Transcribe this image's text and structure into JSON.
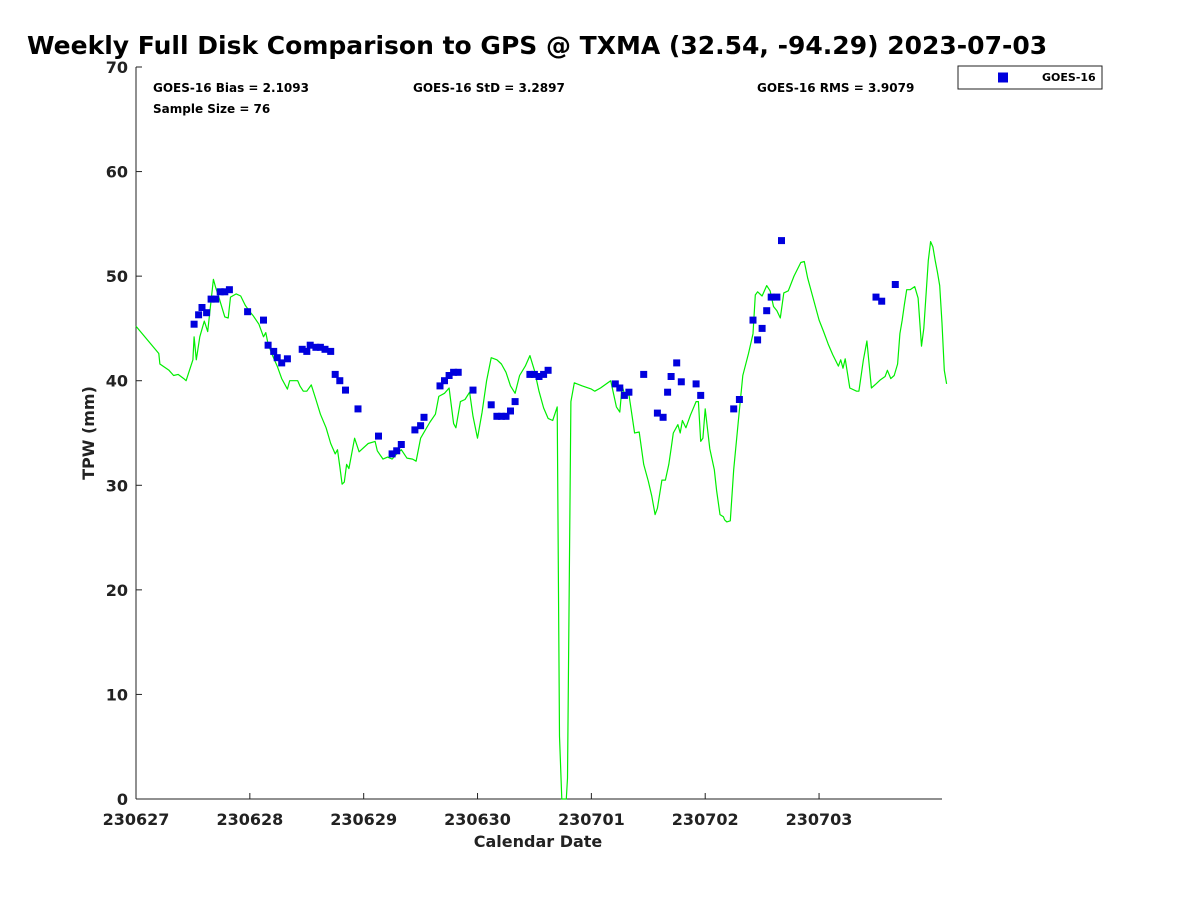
{
  "chart_data": {
    "type": "scatter",
    "title": "Weekly Full Disk Comparison to GPS @ TXMA (32.54, -94.29) 2023-07-03",
    "xlabel": "Calendar Date",
    "ylabel": "TPW (mm)",
    "xlim": [
      230627,
      230703.92
    ],
    "ylim": [
      0,
      70
    ],
    "x_ticks": [
      {
        "value": 0,
        "label": "230627"
      },
      {
        "value": 1,
        "label": "230628"
      },
      {
        "value": 2,
        "label": "230629"
      },
      {
        "value": 3,
        "label": "230630"
      },
      {
        "value": 4,
        "label": "230701"
      },
      {
        "value": 5,
        "label": "230702"
      },
      {
        "value": 6,
        "label": "230703"
      }
    ],
    "y_ticks": [
      0,
      10,
      20,
      30,
      40,
      50,
      60,
      70
    ],
    "grid": false,
    "legend_position": "top-right",
    "stats": {
      "bias": "GOES-16 Bias = 2.1093",
      "std": "GOES-16 StD = 3.2897",
      "rms": "GOES-16 RMS = 3.9079",
      "sample_size": "Sample Size = 76"
    },
    "series": [
      {
        "name": "GOES-16",
        "kind": "markers",
        "color": "#0000dd",
        "points": [
          [
            0.51,
            45.4
          ],
          [
            0.55,
            46.3
          ],
          [
            0.58,
            47.0
          ],
          [
            0.62,
            46.5
          ],
          [
            0.66,
            47.8
          ],
          [
            0.7,
            47.8
          ],
          [
            0.74,
            48.5
          ],
          [
            0.78,
            48.5
          ],
          [
            0.82,
            48.7
          ],
          [
            0.98,
            46.6
          ],
          [
            1.12,
            45.8
          ],
          [
            1.16,
            43.4
          ],
          [
            1.21,
            42.8
          ],
          [
            1.24,
            42.2
          ],
          [
            1.28,
            41.7
          ],
          [
            1.33,
            42.1
          ],
          [
            1.46,
            43.0
          ],
          [
            1.5,
            42.8
          ],
          [
            1.53,
            43.4
          ],
          [
            1.58,
            43.2
          ],
          [
            1.62,
            43.2
          ],
          [
            1.66,
            43.0
          ],
          [
            1.71,
            42.8
          ],
          [
            1.75,
            40.6
          ],
          [
            1.79,
            40.0
          ],
          [
            1.84,
            39.1
          ],
          [
            1.95,
            37.3
          ],
          [
            2.13,
            34.7
          ],
          [
            2.25,
            33.0
          ],
          [
            2.29,
            33.3
          ],
          [
            2.33,
            33.9
          ],
          [
            2.45,
            35.3
          ],
          [
            2.5,
            35.7
          ],
          [
            2.53,
            36.5
          ],
          [
            2.67,
            39.5
          ],
          [
            2.71,
            40.0
          ],
          [
            2.75,
            40.5
          ],
          [
            2.79,
            40.8
          ],
          [
            2.83,
            40.8
          ],
          [
            2.96,
            39.1
          ],
          [
            3.12,
            37.7
          ],
          [
            3.17,
            36.6
          ],
          [
            3.21,
            36.6
          ],
          [
            3.25,
            36.6
          ],
          [
            3.29,
            37.1
          ],
          [
            3.33,
            38.0
          ],
          [
            3.46,
            40.6
          ],
          [
            3.5,
            40.6
          ],
          [
            3.54,
            40.4
          ],
          [
            3.58,
            40.6
          ],
          [
            3.62,
            41.0
          ],
          [
            4.21,
            39.7
          ],
          [
            4.25,
            39.3
          ],
          [
            4.29,
            38.6
          ],
          [
            4.33,
            38.9
          ],
          [
            4.46,
            40.6
          ],
          [
            4.58,
            36.9
          ],
          [
            4.63,
            36.5
          ],
          [
            4.67,
            38.9
          ],
          [
            4.7,
            40.4
          ],
          [
            4.75,
            41.7
          ],
          [
            4.79,
            39.9
          ],
          [
            4.92,
            39.7
          ],
          [
            4.96,
            38.6
          ],
          [
            5.25,
            37.3
          ],
          [
            5.3,
            38.2
          ],
          [
            5.42,
            45.8
          ],
          [
            5.46,
            43.9
          ],
          [
            5.5,
            45.0
          ],
          [
            5.54,
            46.7
          ],
          [
            5.58,
            48.0
          ],
          [
            5.63,
            48.0
          ],
          [
            5.67,
            53.4
          ],
          [
            6.5,
            48.0
          ],
          [
            6.55,
            47.6
          ],
          [
            6.67,
            49.2
          ]
        ]
      },
      {
        "name": "GPS",
        "kind": "line",
        "color": "#00ee00",
        "points": [
          [
            0.0,
            45.2
          ],
          [
            0.2,
            42.6
          ],
          [
            0.21,
            41.6
          ],
          [
            0.29,
            41.0
          ],
          [
            0.33,
            40.5
          ],
          [
            0.37,
            40.6
          ],
          [
            0.42,
            40.2
          ],
          [
            0.44,
            40.0
          ],
          [
            0.5,
            42.0
          ],
          [
            0.51,
            44.2
          ],
          [
            0.53,
            42.0
          ],
          [
            0.56,
            44.2
          ],
          [
            0.6,
            45.7
          ],
          [
            0.63,
            44.7
          ],
          [
            0.68,
            49.7
          ],
          [
            0.7,
            48.9
          ],
          [
            0.73,
            47.9
          ],
          [
            0.78,
            46.1
          ],
          [
            0.81,
            46.0
          ],
          [
            0.83,
            48.0
          ],
          [
            0.88,
            48.3
          ],
          [
            0.92,
            48.1
          ],
          [
            0.96,
            47.2
          ],
          [
            1.0,
            46.6
          ],
          [
            1.03,
            46.2
          ],
          [
            1.08,
            45.4
          ],
          [
            1.12,
            44.2
          ],
          [
            1.14,
            44.6
          ],
          [
            1.16,
            43.5
          ],
          [
            1.2,
            42.4
          ],
          [
            1.24,
            41.4
          ],
          [
            1.28,
            40.2
          ],
          [
            1.33,
            39.2
          ],
          [
            1.35,
            40.0
          ],
          [
            1.42,
            40.0
          ],
          [
            1.44,
            39.5
          ],
          [
            1.47,
            39.0
          ],
          [
            1.5,
            39.0
          ],
          [
            1.54,
            39.6
          ],
          [
            1.58,
            38.2
          ],
          [
            1.62,
            36.8
          ],
          [
            1.67,
            35.5
          ],
          [
            1.71,
            34.0
          ],
          [
            1.75,
            33.0
          ],
          [
            1.77,
            33.4
          ],
          [
            1.79,
            31.8
          ],
          [
            1.81,
            30.1
          ],
          [
            1.83,
            30.3
          ],
          [
            1.85,
            32.0
          ],
          [
            1.87,
            31.6
          ],
          [
            1.92,
            34.5
          ],
          [
            1.96,
            33.2
          ],
          [
            2.04,
            34.0
          ],
          [
            2.1,
            34.2
          ],
          [
            2.12,
            33.3
          ],
          [
            2.17,
            32.5
          ],
          [
            2.21,
            32.7
          ],
          [
            2.25,
            32.5
          ],
          [
            2.29,
            33.0
          ],
          [
            2.33,
            33.4
          ],
          [
            2.38,
            32.6
          ],
          [
            2.43,
            32.5
          ],
          [
            2.46,
            32.3
          ],
          [
            2.5,
            34.5
          ],
          [
            2.58,
            36.0
          ],
          [
            2.63,
            36.8
          ],
          [
            2.66,
            38.5
          ],
          [
            2.71,
            38.8
          ],
          [
            2.75,
            39.3
          ],
          [
            2.79,
            35.9
          ],
          [
            2.81,
            35.5
          ],
          [
            2.85,
            38.0
          ],
          [
            2.89,
            38.2
          ],
          [
            2.93,
            38.9
          ],
          [
            2.96,
            36.6
          ],
          [
            3.0,
            34.5
          ],
          [
            3.04,
            37.0
          ],
          [
            3.08,
            40.0
          ],
          [
            3.12,
            42.2
          ],
          [
            3.17,
            42.0
          ],
          [
            3.21,
            41.6
          ],
          [
            3.25,
            40.8
          ],
          [
            3.29,
            39.5
          ],
          [
            3.33,
            38.8
          ],
          [
            3.37,
            40.5
          ],
          [
            3.42,
            41.4
          ],
          [
            3.46,
            42.4
          ],
          [
            3.5,
            41.0
          ],
          [
            3.54,
            39.0
          ],
          [
            3.58,
            37.4
          ],
          [
            3.62,
            36.4
          ],
          [
            3.66,
            36.2
          ],
          [
            3.7,
            37.5
          ],
          [
            3.72,
            6.0
          ],
          [
            3.74,
            0.0
          ],
          [
            3.78,
            0.0
          ],
          [
            3.79,
            2.0
          ],
          [
            3.82,
            38.0
          ],
          [
            3.85,
            39.8
          ],
          [
            3.92,
            39.5
          ],
          [
            4.0,
            39.2
          ],
          [
            4.03,
            39.0
          ],
          [
            4.08,
            39.3
          ],
          [
            4.17,
            40.0
          ],
          [
            4.22,
            37.5
          ],
          [
            4.25,
            37.0
          ],
          [
            4.27,
            39.5
          ],
          [
            4.29,
            38.8
          ],
          [
            4.33,
            38.7
          ],
          [
            4.38,
            35.0
          ],
          [
            4.42,
            35.1
          ],
          [
            4.46,
            32.0
          ],
          [
            4.5,
            30.4
          ],
          [
            4.53,
            29.0
          ],
          [
            4.56,
            27.2
          ],
          [
            4.58,
            27.8
          ],
          [
            4.62,
            30.5
          ],
          [
            4.65,
            30.5
          ],
          [
            4.68,
            32.0
          ],
          [
            4.7,
            33.5
          ],
          [
            4.72,
            35.0
          ],
          [
            4.76,
            35.8
          ],
          [
            4.78,
            35.0
          ],
          [
            4.8,
            36.2
          ],
          [
            4.83,
            35.5
          ],
          [
            4.87,
            36.7
          ],
          [
            4.92,
            38.0
          ],
          [
            4.94,
            38.0
          ],
          [
            4.96,
            34.2
          ],
          [
            4.98,
            34.5
          ],
          [
            5.0,
            37.3
          ],
          [
            5.04,
            33.5
          ],
          [
            5.08,
            31.5
          ],
          [
            5.1,
            29.5
          ],
          [
            5.13,
            27.2
          ],
          [
            5.16,
            27.0
          ],
          [
            5.17,
            26.7
          ],
          [
            5.19,
            26.5
          ],
          [
            5.22,
            26.6
          ],
          [
            5.25,
            31.5
          ],
          [
            5.29,
            36.0
          ],
          [
            5.33,
            40.5
          ],
          [
            5.38,
            42.6
          ],
          [
            5.42,
            44.5
          ],
          [
            5.44,
            48.2
          ],
          [
            5.46,
            48.5
          ],
          [
            5.5,
            48.1
          ],
          [
            5.54,
            49.1
          ],
          [
            5.57,
            48.6
          ],
          [
            5.6,
            47.1
          ],
          [
            5.63,
            46.7
          ],
          [
            5.66,
            46.0
          ],
          [
            5.69,
            48.4
          ],
          [
            5.73,
            48.6
          ],
          [
            5.78,
            50.0
          ],
          [
            5.84,
            51.3
          ],
          [
            5.87,
            51.4
          ],
          [
            5.9,
            49.8
          ],
          [
            5.95,
            47.8
          ],
          [
            6.0,
            45.8
          ],
          [
            6.04,
            44.7
          ],
          [
            6.08,
            43.5
          ],
          [
            6.12,
            42.5
          ],
          [
            6.17,
            41.4
          ],
          [
            6.19,
            42.0
          ],
          [
            6.21,
            41.2
          ],
          [
            6.23,
            42.1
          ],
          [
            6.27,
            39.3
          ],
          [
            6.33,
            39.0
          ],
          [
            6.35,
            39.0
          ],
          [
            6.39,
            42.0
          ],
          [
            6.42,
            43.8
          ],
          [
            6.46,
            39.3
          ],
          [
            6.5,
            39.7
          ],
          [
            6.54,
            40.1
          ],
          [
            6.58,
            40.4
          ],
          [
            6.6,
            41.0
          ],
          [
            6.63,
            40.2
          ],
          [
            6.66,
            40.5
          ],
          [
            6.69,
            41.6
          ],
          [
            6.71,
            44.5
          ],
          [
            6.73,
            45.8
          ],
          [
            6.75,
            47.3
          ],
          [
            6.77,
            48.7
          ],
          [
            6.8,
            48.7
          ],
          [
            6.84,
            49.0
          ],
          [
            6.87,
            47.9
          ],
          [
            6.9,
            43.3
          ],
          [
            6.92,
            45.0
          ],
          [
            6.96,
            51.5
          ],
          [
            6.98,
            53.3
          ],
          [
            7.0,
            52.8
          ],
          [
            7.02,
            51.5
          ],
          [
            7.04,
            50.4
          ],
          [
            7.06,
            49.1
          ],
          [
            7.08,
            45.5
          ],
          [
            7.1,
            41.0
          ],
          [
            7.12,
            39.7
          ]
        ]
      }
    ]
  }
}
